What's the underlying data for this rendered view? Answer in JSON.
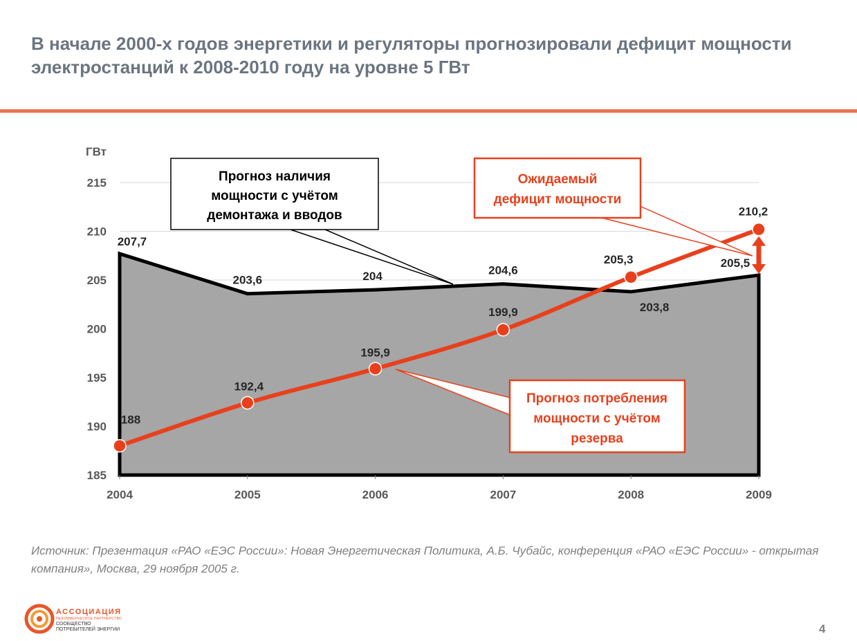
{
  "slide": {
    "title": "В начале 2000-х годов энергетики и регуляторы прогнозировали дефицит мощности электростанций к 2008-2010 году на уровне 5 ГВт",
    "source": "Источник: Презентация «РАО «ЕЭС России»: Новая Энергетическая Политика, А.Б. Чубайс, конференция «РАО «ЕЭС России» - открытая компания», Москва, 29 ноября 2005 г.",
    "page_number": "4",
    "logo": {
      "line1": "АССОЦИАЦИЯ",
      "line2": "НЕКОММЕРЧЕСКОЕ ПАРТНЕРСТВО",
      "line3": "СООБЩЕСТВО",
      "line4": "ПОТРЕБИТЕЛЕЙ ЭНЕРГИИ"
    },
    "colors": {
      "accent": "#e8724f",
      "orange_line": "#e8401c",
      "area_fill": "#a6a6a6",
      "text_gray": "#6b7580"
    }
  },
  "chart_data": {
    "type": "area",
    "ylabel": "ГВт",
    "ylim": [
      185,
      215
    ],
    "yticks": [
      185,
      190,
      195,
      200,
      205,
      210,
      215
    ],
    "categories": [
      "2004",
      "2005",
      "2006",
      "2007",
      "2008",
      "2009"
    ],
    "grid": true,
    "series": [
      {
        "type": "area",
        "values": [
          207.7,
          203.6,
          204,
          204.6,
          203.8,
          205.5
        ],
        "labels": [
          "207,7",
          "203,6",
          "204",
          "204,6",
          "203,8",
          "205,5"
        ],
        "color": "#a6a6a6"
      },
      {
        "type": "line",
        "values": [
          188,
          192.4,
          195.9,
          199.9,
          205.3,
          210.2
        ],
        "labels": [
          "188",
          "192,4",
          "195,9",
          "199,9",
          "205,3",
          "210,2"
        ],
        "color": "#e8401c"
      }
    ],
    "annotations": [
      {
        "text_lines": [
          "Прогноз наличия",
          "мощности с учётом",
          "демонтажа и вводов"
        ]
      },
      {
        "text_lines": [
          "Ожидаемый",
          "дефицит мощности"
        ]
      },
      {
        "text_lines": [
          "Прогноз потребления",
          "мощности с учётом",
          "резерва"
        ]
      }
    ]
  }
}
